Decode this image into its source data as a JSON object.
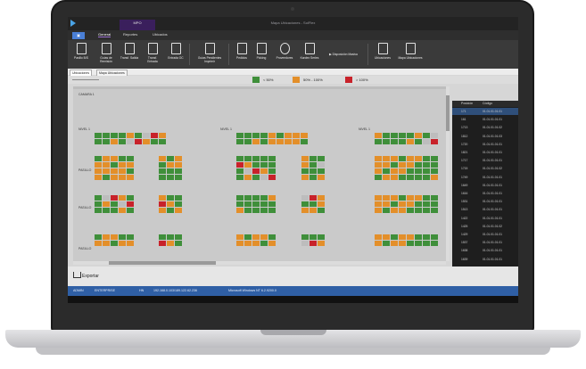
{
  "app": {
    "title": "Mapa Ubicaciones - SolFlex",
    "context_tab": "MPO",
    "file_tab": "▣"
  },
  "tabs": [
    "General",
    "Reportes",
    "Ubicados"
  ],
  "ribbon": [
    {
      "label": "Pasillo\nB/S",
      "icon": "document-icon"
    },
    {
      "label": "Guías de\nRemisión",
      "icon": "layers-icon"
    },
    {
      "label": "Transf.\nSalida",
      "icon": "layers-icon"
    },
    {
      "label": "Transf.\nEntrada",
      "icon": "document-icon"
    },
    {
      "label": "Entrada\nOC",
      "icon": "document-icon"
    },
    {
      "label": "Guías Pendientes\nImprimir",
      "icon": "printer-icon"
    },
    {
      "label": "Pedidos",
      "icon": "document-icon"
    },
    {
      "label": "Picking",
      "icon": "cart-icon"
    },
    {
      "label": "Proveedores",
      "icon": "user-icon"
    },
    {
      "label": "Kardex\nSeries",
      "icon": "layers-icon"
    },
    {
      "label": "▶ Disposición Masiva",
      "icon": "play-icon"
    },
    {
      "label": "Ubicaciones",
      "icon": "list-icon"
    },
    {
      "label": "Mapa\nUbicaciones",
      "icon": "grid-icon"
    }
  ],
  "doc_tabs": [
    "Ubicaciones",
    "Mapa Ubicaciones"
  ],
  "legend": [
    {
      "label": "< 50%",
      "color": "#3f8f3a"
    },
    {
      "label": "50% - 100%",
      "color": "#e38f2a"
    },
    {
      "label": "> 100%",
      "color": "#c8222a"
    }
  ],
  "map": {
    "camara": "CAMARA 1",
    "nivel": "NIVEL 1",
    "pasillo": "PASILLO"
  },
  "side_table": {
    "headers": [
      "Posición",
      "Código"
    ],
    "rows": [
      [
        "171",
        "01.01.01.01.01"
      ],
      [
        "161",
        "01.01.01.01.01"
      ],
      [
        "1713",
        "01.01.01.01.02"
      ],
      [
        "1812",
        "01.01.01.01.03"
      ],
      [
        "1720",
        "01.01.01.01.01"
      ],
      [
        "1821",
        "01.01.01.01.01"
      ],
      [
        "1717",
        "01.01.01.01.01"
      ],
      [
        "1715",
        "01.01.01.01.02"
      ],
      [
        "1749",
        "01.01.01.01.01"
      ],
      [
        "1649",
        "01.01.01.01.01"
      ],
      [
        "1616",
        "01.01.01.01.01"
      ],
      [
        "1531",
        "01.01.01.01.01"
      ],
      [
        "1513",
        "01.01.01.01.01"
      ],
      [
        "1422",
        "01.01.01.01.01"
      ],
      [
        "1425",
        "01.01.01.01.02"
      ],
      [
        "1429",
        "01.01.01.01.01"
      ],
      [
        "1537",
        "01.01.01.01.01"
      ],
      [
        "1638",
        "01.01.01.01.01"
      ],
      [
        "1639",
        "01.01.01.01.01"
      ]
    ]
  },
  "footer": {
    "export_label": "Exportar"
  },
  "status": [
    "ADMIN",
    "ENTERPRISE",
    "HN",
    "192.168.0.103/189.122.62.236",
    "Microsoft Windows NT 6.2.9200.0"
  ]
}
